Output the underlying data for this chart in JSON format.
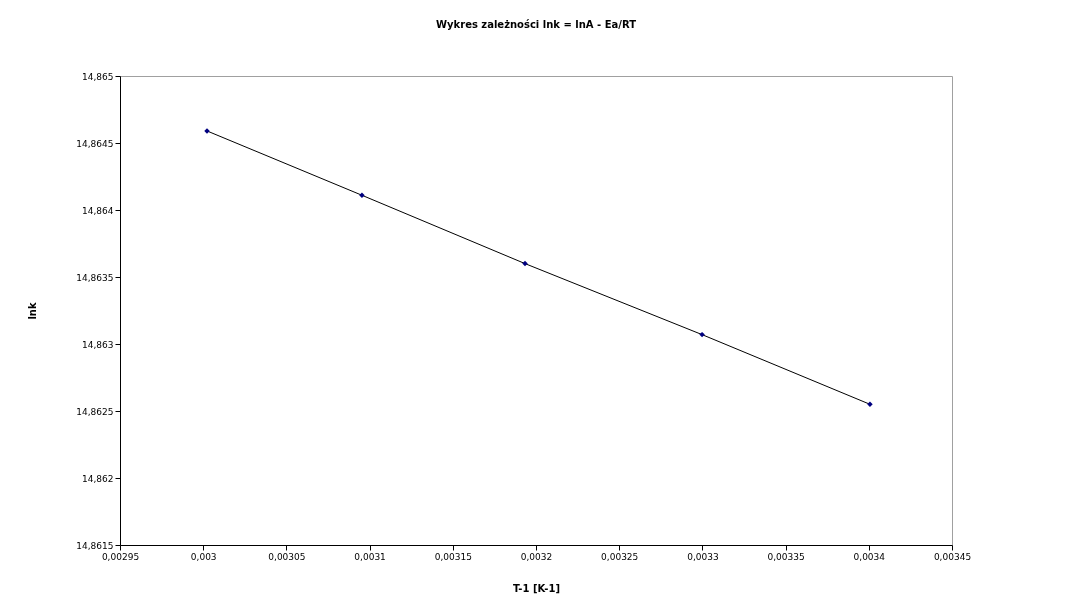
{
  "chart_data": {
    "type": "scatter",
    "title": "Wykres zależności  lnk = lnA - Ea/RT",
    "xlabel": "T-1  [K-1]",
    "ylabel": "lnk",
    "x": [
      0.0030023,
      0.0030954,
      0.0031934,
      0.0032998,
      0.0034007
    ],
    "series": [
      {
        "type": "scatter",
        "color": "#000080",
        "marker": "diamond",
        "values": [
          14.86459,
          14.86411,
          14.8636,
          14.86307,
          14.86255
        ]
      },
      {
        "type": "line",
        "color": "#000000",
        "marker": "none",
        "values": [
          14.86459,
          14.86411,
          14.8636,
          14.86307,
          14.86255
        ]
      }
    ],
    "xlim": [
      0.00295,
      0.00345
    ],
    "xticks": [
      {
        "value": 0.00295,
        "label": "0,00295"
      },
      {
        "value": 0.003,
        "label": "0,003"
      },
      {
        "value": 0.00305,
        "label": "0,00305"
      },
      {
        "value": 0.0031,
        "label": "0,0031"
      },
      {
        "value": 0.00315,
        "label": "0,00315"
      },
      {
        "value": 0.0032,
        "label": "0,0032"
      },
      {
        "value": 0.00325,
        "label": "0,00325"
      },
      {
        "value": 0.0033,
        "label": "0,0033"
      },
      {
        "value": 0.00335,
        "label": "0,00335"
      },
      {
        "value": 0.0034,
        "label": "0,0034"
      },
      {
        "value": 0.00345,
        "label": "0,00345"
      }
    ],
    "ylim": [
      14.8615,
      14.865
    ],
    "yticks": [
      {
        "value": 14.8615,
        "label": "14,8615"
      },
      {
        "value": 14.862,
        "label": "14,862"
      },
      {
        "value": 14.8625,
        "label": "14,8625"
      },
      {
        "value": 14.863,
        "label": "14,863"
      },
      {
        "value": 14.8635,
        "label": "14,8635"
      },
      {
        "value": 14.864,
        "label": "14,864"
      },
      {
        "value": 14.8645,
        "label": "14,8645"
      },
      {
        "value": 14.865,
        "label": "14,865"
      }
    ]
  }
}
